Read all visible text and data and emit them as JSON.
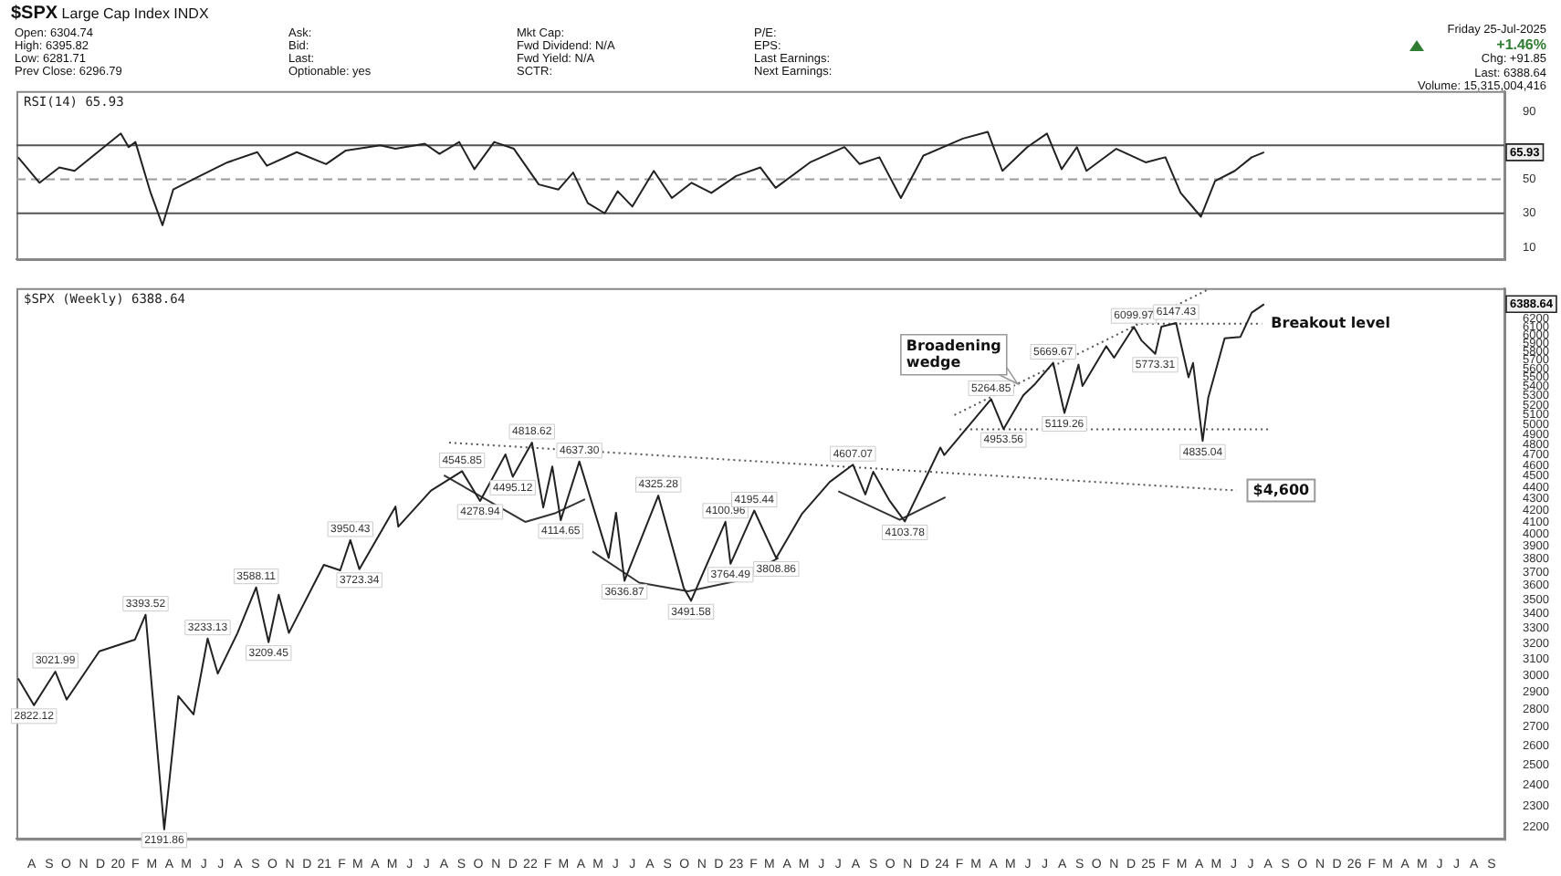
{
  "chart_data": [
    {
      "type": "line",
      "title": "$SPX",
      "subtitle": "Large Cap Index INDX",
      "annotations": [
        "Open: 6304.74",
        "High: 6395.82",
        "Low: 6281.71",
        "Prev Close: 6296.79",
        "Ask:",
        "Bid:",
        "Last:",
        "Optionable: yes",
        "Mkt Cap:",
        "Fwd Dividend: N/A",
        "Fwd Yield: N/A",
        "SCTR:",
        "P/E:",
        "EPS:",
        "Last Earnings:",
        "Next Earnings:",
        "Friday 25-Jul-2025",
        "+1.46%",
        "Chg: +91.85",
        "Last: 6388.64",
        "Volume: 15,315,004,416",
        "65.93"
      ],
      "xlim": [
        "2019-07-05",
        "2026-09-24"
      ],
      "ylim": [
        3,
        102
      ],
      "yticks": [
        10,
        30,
        50,
        90
      ],
      "tick_labels": "y",
      "marker": "none",
      "line_style": "solid",
      "ref_lines": [
        {
          "axis": "y",
          "value": 70,
          "color": "#555555"
        },
        {
          "axis": "y",
          "value": 50,
          "color": "#999999",
          "line_style": "dashed"
        },
        {
          "axis": "y",
          "value": 30,
          "color": "#555555"
        }
      ],
      "series": [
        {
          "name": "RSI(14) 65.93",
          "color": "#222222",
          "x": [
            "2019-07-08",
            "2019-08-15",
            "2019-09-19",
            "2019-10-16",
            "2019-12-07",
            "2020-01-06",
            "2020-01-20",
            "2020-02-01",
            "2020-02-28",
            "2020-03-20",
            "2020-04-08",
            "2020-05-13",
            "2020-07-13",
            "2020-09-04",
            "2020-09-21",
            "2020-11-13",
            "2021-01-04",
            "2021-02-08",
            "2021-04-10",
            "2021-05-07",
            "2021-06-28",
            "2021-07-24",
            "2021-08-28",
            "2021-09-24",
            "2021-10-29",
            "2021-12-03",
            "2022-01-16",
            "2022-02-20",
            "2022-03-18",
            "2022-04-13",
            "2022-05-13",
            "2022-06-05",
            "2022-07-01",
            "2022-08-08",
            "2022-09-09",
            "2022-10-14",
            "2022-11-18",
            "2023-01-01",
            "2023-02-13",
            "2023-03-12",
            "2023-05-12",
            "2023-07-12",
            "2023-08-08",
            "2023-09-12",
            "2023-10-20",
            "2023-11-29",
            "2024-02-07",
            "2024-03-22",
            "2024-04-17",
            "2024-05-31",
            "2024-07-05",
            "2024-07-31",
            "2024-08-27",
            "2024-09-13",
            "2024-11-05",
            "2024-12-27",
            "2025-01-31",
            "2025-02-27",
            "2025-04-04",
            "2025-04-29",
            "2025-06-03",
            "2025-07-03",
            "2025-07-25"
          ],
          "values": [
            63,
            48,
            57,
            55,
            69,
            77,
            69,
            72,
            42,
            23,
            44,
            50,
            60,
            66,
            58,
            66,
            59,
            67,
            70,
            68,
            71,
            65,
            72,
            56,
            72,
            68,
            47,
            44,
            54,
            36,
            30,
            43,
            34,
            55,
            39,
            48,
            42,
            52,
            57,
            45,
            60,
            69,
            59,
            63,
            39,
            64,
            74,
            78,
            55,
            69,
            77,
            56,
            69,
            55,
            68,
            60,
            63,
            42,
            28,
            49,
            55,
            63,
            65.93
          ]
        }
      ]
    },
    {
      "type": "line",
      "log": true,
      "xlim": [
        "2019-07-05",
        "2026-09-24"
      ],
      "xticks": [
        {
          "value": "2019-08-01",
          "label": "A"
        },
        {
          "value": "2019-09-01",
          "label": "S"
        },
        {
          "value": "2019-10-01",
          "label": "O"
        },
        {
          "value": "2019-11-01",
          "label": "N"
        },
        {
          "value": "2019-12-01",
          "label": "D"
        },
        {
          "value": "2020-01-01",
          "label": "20"
        },
        {
          "value": "2020-02-01",
          "label": "F"
        },
        {
          "value": "2020-03-01",
          "label": "M"
        },
        {
          "value": "2020-04-01",
          "label": "A"
        },
        {
          "value": "2020-05-01",
          "label": "M"
        },
        {
          "value": "2020-06-01",
          "label": "J"
        },
        {
          "value": "2020-07-01",
          "label": "J"
        },
        {
          "value": "2020-08-01",
          "label": "A"
        },
        {
          "value": "2020-09-01",
          "label": "S"
        },
        {
          "value": "2020-10-01",
          "label": "O"
        },
        {
          "value": "2020-11-01",
          "label": "N"
        },
        {
          "value": "2020-12-01",
          "label": "D"
        },
        {
          "value": "2021-01-01",
          "label": "21"
        },
        {
          "value": "2021-02-01",
          "label": "F"
        },
        {
          "value": "2021-03-01",
          "label": "M"
        },
        {
          "value": "2021-04-01",
          "label": "A"
        },
        {
          "value": "2021-05-01",
          "label": "M"
        },
        {
          "value": "2021-06-01",
          "label": "J"
        },
        {
          "value": "2021-07-01",
          "label": "J"
        },
        {
          "value": "2021-08-01",
          "label": "A"
        },
        {
          "value": "2021-09-01",
          "label": "S"
        },
        {
          "value": "2021-10-01",
          "label": "O"
        },
        {
          "value": "2021-11-01",
          "label": "N"
        },
        {
          "value": "2021-12-01",
          "label": "D"
        },
        {
          "value": "2022-01-01",
          "label": "22"
        },
        {
          "value": "2022-02-01",
          "label": "F"
        },
        {
          "value": "2022-03-01",
          "label": "M"
        },
        {
          "value": "2022-04-01",
          "label": "A"
        },
        {
          "value": "2022-05-01",
          "label": "M"
        },
        {
          "value": "2022-06-01",
          "label": "J"
        },
        {
          "value": "2022-07-01",
          "label": "J"
        },
        {
          "value": "2022-08-01",
          "label": "A"
        },
        {
          "value": "2022-09-01",
          "label": "S"
        },
        {
          "value": "2022-10-01",
          "label": "O"
        },
        {
          "value": "2022-11-01",
          "label": "N"
        },
        {
          "value": "2022-12-01",
          "label": "D"
        },
        {
          "value": "2023-01-01",
          "label": "23"
        },
        {
          "value": "2023-02-01",
          "label": "F"
        },
        {
          "value": "2023-03-01",
          "label": "M"
        },
        {
          "value": "2023-04-01",
          "label": "A"
        },
        {
          "value": "2023-05-01",
          "label": "M"
        },
        {
          "value": "2023-06-01",
          "label": "J"
        },
        {
          "value": "2023-07-01",
          "label": "J"
        },
        {
          "value": "2023-08-01",
          "label": "A"
        },
        {
          "value": "2023-09-01",
          "label": "S"
        },
        {
          "value": "2023-10-01",
          "label": "O"
        },
        {
          "value": "2023-11-01",
          "label": "N"
        },
        {
          "value": "2023-12-01",
          "label": "D"
        },
        {
          "value": "2024-01-01",
          "label": "24"
        },
        {
          "value": "2024-02-01",
          "label": "F"
        },
        {
          "value": "2024-03-01",
          "label": "M"
        },
        {
          "value": "2024-04-01",
          "label": "A"
        },
        {
          "value": "2024-05-01",
          "label": "M"
        },
        {
          "value": "2024-06-01",
          "label": "J"
        },
        {
          "value": "2024-07-01",
          "label": "J"
        },
        {
          "value": "2024-08-01",
          "label": "A"
        },
        {
          "value": "2024-09-01",
          "label": "S"
        },
        {
          "value": "2024-10-01",
          "label": "O"
        },
        {
          "value": "2024-11-01",
          "label": "N"
        },
        {
          "value": "2024-12-01",
          "label": "D"
        },
        {
          "value": "2025-01-01",
          "label": "25"
        },
        {
          "value": "2025-02-01",
          "label": "F"
        },
        {
          "value": "2025-03-01",
          "label": "M"
        },
        {
          "value": "2025-04-01",
          "label": "A"
        },
        {
          "value": "2025-05-01",
          "label": "M"
        },
        {
          "value": "2025-06-01",
          "label": "J"
        },
        {
          "value": "2025-07-01",
          "label": "J"
        },
        {
          "value": "2025-08-01",
          "label": "A"
        },
        {
          "value": "2025-09-01",
          "label": "S"
        },
        {
          "value": "2025-10-01",
          "label": "O"
        },
        {
          "value": "2025-11-01",
          "label": "N"
        },
        {
          "value": "2025-12-01",
          "label": "D"
        },
        {
          "value": "2026-01-01",
          "label": "26"
        },
        {
          "value": "2026-02-01",
          "label": "F"
        },
        {
          "value": "2026-03-01",
          "label": "M"
        },
        {
          "value": "2026-04-01",
          "label": "A"
        },
        {
          "value": "2026-05-01",
          "label": "M"
        },
        {
          "value": "2026-06-01",
          "label": "J"
        },
        {
          "value": "2026-07-01",
          "label": "J"
        },
        {
          "value": "2026-08-01",
          "label": "A"
        },
        {
          "value": "2026-09-01",
          "label": "S"
        }
      ],
      "ylim": [
        2150,
        6600
      ],
      "yticks": [
        2200,
        2300,
        2400,
        2500,
        2600,
        2700,
        2800,
        2900,
        3000,
        3100,
        3200,
        3300,
        3400,
        3500,
        3600,
        3700,
        3800,
        3900,
        4000,
        4100,
        4200,
        4300,
        4400,
        4500,
        4600,
        4700,
        4800,
        4900,
        5000,
        5100,
        5200,
        5300,
        5400,
        5500,
        5600,
        5700,
        5800,
        5900,
        6000,
        6100,
        6200
      ],
      "marker": "none",
      "line_style": "solid",
      "annotations": [
        {
          "text": "Broadening wedge",
          "x": "2024-05-14",
          "y": 5431
        },
        {
          "text": "$4,600",
          "x": "2025-06-06",
          "y": 4371
        },
        {
          "text": "Breakout level",
          "x": "2025-07-21",
          "y": 6140
        },
        "6388.64"
      ],
      "series": [
        {
          "name": "$SPX (Weekly) 6388.64",
          "color": "#222222",
          "x": [
            "2019-07-08",
            "2019-08-05",
            "2019-09-12",
            "2019-10-02",
            "2019-11-29",
            "2020-01-31",
            "2020-02-19",
            "2020-03-23",
            "2020-04-17",
            "2020-05-14",
            "2020-06-08",
            "2020-06-26",
            "2020-07-31",
            "2020-09-02",
            "2020-09-24",
            "2020-10-12",
            "2020-10-30",
            "2020-12-31",
            "2021-01-29",
            "2021-02-16",
            "2021-03-04",
            "2021-05-07",
            "2021-05-12",
            "2021-07-09",
            "2021-09-02",
            "2021-10-04",
            "2021-11-18",
            "2021-12-01",
            "2022-01-04",
            "2022-01-24",
            "2022-02-09",
            "2022-02-24",
            "2022-03-29",
            "2022-05-20",
            "2022-06-02",
            "2022-06-17",
            "2022-08-16",
            "2022-09-30",
            "2022-10-13",
            "2022-12-13",
            "2022-12-22",
            "2023-02-02",
            "2023-03-13",
            "2023-04-28",
            "2023-06-16",
            "2023-07-27",
            "2023-08-18",
            "2023-09-01",
            "2023-09-29",
            "2023-10-27",
            "2023-12-29",
            "2024-01-05",
            "2024-03-28",
            "2024-04-19",
            "2024-05-24",
            "2024-06-14",
            "2024-07-16",
            "2024-08-05",
            "2024-08-30",
            "2024-09-06",
            "2024-10-18",
            "2024-11-01",
            "2024-12-06",
            "2024-12-20",
            "2025-01-13",
            "2025-01-24",
            "2025-02-19",
            "2025-03-13",
            "2025-03-21",
            "2025-04-07",
            "2025-04-17",
            "2025-05-16",
            "2025-06-13",
            "2025-07-03",
            "2025-07-25"
          ],
          "values": [
            2980,
            2822.12,
            3021.99,
            2855,
            3150,
            3225,
            3393.52,
            2191.86,
            2875,
            2770,
            3233.13,
            3010,
            3270,
            3588.11,
            3209.45,
            3535,
            3270,
            3756,
            3715,
            3950.43,
            3723.34,
            4230,
            4060,
            4370,
            4545.85,
            4278.94,
            4704,
            4495.12,
            4818.62,
            4222,
            4590,
            4114.65,
            4637.3,
            3810,
            4177,
            3636.87,
            4325.28,
            3585,
            3491.58,
            4100.96,
            3764.49,
            4195.44,
            3808.86,
            4170,
            4448,
            4607.07,
            4335,
            4541,
            4288,
            4103.78,
            4770,
            4698,
            5264.85,
            4953.56,
            5305,
            5431,
            5669.67,
            5119.26,
            5648,
            5408,
            5864,
            5728,
            6099.97,
            5930,
            5773.31,
            6101,
            6147.43,
            5504,
            5667,
            4835.04,
            5282,
            5958,
            5977,
            6279,
            6388.64
          ],
          "value_labels": [
            null,
            "2822.12",
            "3021.99",
            null,
            null,
            null,
            "3393.52",
            "2191.86",
            null,
            null,
            "3233.13",
            null,
            null,
            "3588.11",
            "3209.45",
            null,
            null,
            null,
            null,
            "3950.43",
            "3723.34",
            null,
            null,
            null,
            "4545.85",
            "4278.94",
            null,
            "4495.12",
            "4818.62",
            null,
            null,
            "4114.65",
            "4637.30",
            null,
            null,
            "3636.87",
            "4325.28",
            null,
            "3491.58",
            "4100.96",
            "3764.49",
            "4195.44",
            "3808.86",
            null,
            null,
            "4607.07",
            null,
            null,
            null,
            "4103.78",
            null,
            null,
            "5264.85",
            "4953.56",
            null,
            null,
            "5669.67",
            "5119.26",
            null,
            null,
            null,
            null,
            "6099.97",
            null,
            "5773.31",
            null,
            "6147.43",
            null,
            null,
            "4835.04",
            null,
            null,
            null,
            null,
            null
          ]
        },
        {
          "type": "line",
          "color": "#555555",
          "line_style": "dotted",
          "x": [
            "2021-08-10",
            "2025-06-06"
          ],
          "values": [
            4818,
            4371
          ]
        },
        {
          "type": "line",
          "color": "#555555",
          "line_style": "dotted",
          "x": [
            "2024-01-23",
            "2025-04-19"
          ],
          "values": [
            5097,
            6590
          ]
        },
        {
          "type": "line",
          "color": "#555555",
          "line_style": "dotted",
          "x": [
            "2024-02-01",
            "2025-08-06"
          ],
          "values": [
            4950,
            4950
          ]
        },
        {
          "type": "line",
          "color": "#555555",
          "line_style": "dotted",
          "x": [
            "2024-12-09",
            "2025-07-21"
          ],
          "values": [
            6140,
            6140
          ]
        },
        {
          "type": "line",
          "color": "#333333",
          "line_style": "solid",
          "x": [
            "2021-08-01",
            "2021-12-23",
            "2022-02-15",
            "2022-04-08"
          ],
          "values": [
            4508,
            4100,
            4175,
            4293
          ]
        },
        {
          "type": "line",
          "color": "#333333",
          "line_style": "solid",
          "x": [
            "2022-04-21",
            "2022-07-13",
            "2022-10-08",
            "2023-01-03",
            "2023-03-17"
          ],
          "values": [
            3860,
            3623,
            3560,
            3636,
            3810
          ]
        },
        {
          "type": "line",
          "color": "#333333",
          "line_style": "solid",
          "x": [
            "2023-07-01",
            "2023-10-18",
            "2024-01-07"
          ],
          "values": [
            4364,
            4117,
            4312
          ]
        }
      ]
    }
  ]
}
